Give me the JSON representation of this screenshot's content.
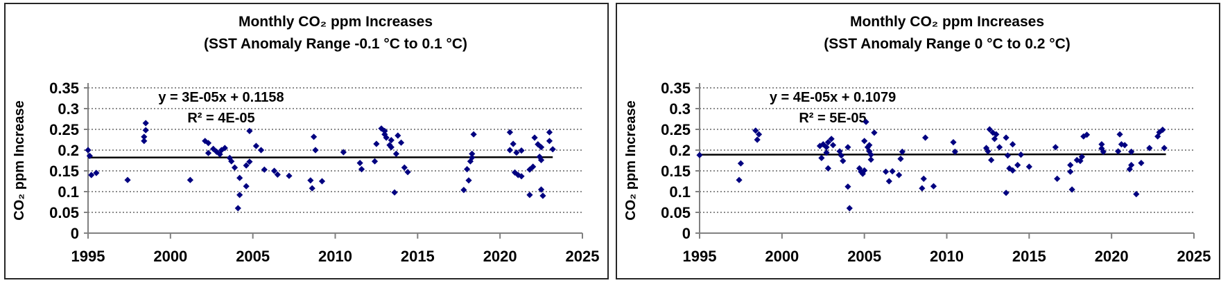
{
  "colors": {
    "marker": "#000080",
    "trend": "#000000",
    "grid": "#444444",
    "axis": "#808080",
    "text": "#000000",
    "border": "#262626",
    "background": "#ffffff"
  },
  "chart_data": [
    {
      "type": "scatter",
      "title": "Monthly CO₂ ppm Increases",
      "subtitle": "(SST Anomaly Range -0.1 °C to 0.1 °C)",
      "equation": "y = 3E-05x + 0.1158",
      "r2": "R² = 4E-05",
      "xlabel": "",
      "ylabel": "CO₂ ppm Increase",
      "xlim": [
        1995,
        2025
      ],
      "ylim": [
        0,
        0.35
      ],
      "x_ticks": [
        1995,
        2000,
        2005,
        2010,
        2015,
        2020,
        2025
      ],
      "y_ticks": [
        0,
        0.05,
        0.1,
        0.15,
        0.2,
        0.25,
        0.3,
        0.35
      ],
      "y_tick_labels": [
        "0",
        "0.05",
        "0.1",
        "0.15",
        "0.2",
        "0.25",
        "0.3",
        "0.35"
      ],
      "grid": "dotted-horizontal",
      "legend": "none",
      "trendline": {
        "x1": 1995,
        "y1": 0.182,
        "x2": 2023.2,
        "y2": 0.183
      },
      "points": [
        [
          1995.0,
          0.2
        ],
        [
          1995.1,
          0.186
        ],
        [
          1995.2,
          0.14
        ],
        [
          1995.5,
          0.145
        ],
        [
          1997.4,
          0.128
        ],
        [
          1998.4,
          0.232
        ],
        [
          1998.4,
          0.222
        ],
        [
          1998.5,
          0.265
        ],
        [
          1998.5,
          0.248
        ],
        [
          2001.2,
          0.128
        ],
        [
          2002.1,
          0.222
        ],
        [
          2002.3,
          0.217
        ],
        [
          2002.3,
          0.193
        ],
        [
          2002.6,
          0.203
        ],
        [
          2002.8,
          0.196
        ],
        [
          2003.0,
          0.19
        ],
        [
          2003.1,
          0.2
        ],
        [
          2003.3,
          0.205
        ],
        [
          2003.6,
          0.181
        ],
        [
          2003.7,
          0.173
        ],
        [
          2003.9,
          0.158
        ],
        [
          2004.1,
          0.06
        ],
        [
          2004.2,
          0.133
        ],
        [
          2004.2,
          0.092
        ],
        [
          2004.6,
          0.113
        ],
        [
          2004.6,
          0.163
        ],
        [
          2004.8,
          0.172
        ],
        [
          2004.8,
          0.246
        ],
        [
          2005.2,
          0.21
        ],
        [
          2005.5,
          0.2
        ],
        [
          2005.7,
          0.153
        ],
        [
          2006.3,
          0.15
        ],
        [
          2006.5,
          0.141
        ],
        [
          2007.2,
          0.138
        ],
        [
          2008.5,
          0.127
        ],
        [
          2008.6,
          0.108
        ],
        [
          2008.7,
          0.232
        ],
        [
          2008.8,
          0.2
        ],
        [
          2009.2,
          0.125
        ],
        [
          2010.5,
          0.195
        ],
        [
          2011.5,
          0.169
        ],
        [
          2011.6,
          0.154
        ],
        [
          2012.4,
          0.173
        ],
        [
          2012.5,
          0.215
        ],
        [
          2012.8,
          0.252
        ],
        [
          2013.0,
          0.246
        ],
        [
          2013.0,
          0.238
        ],
        [
          2013.1,
          0.23
        ],
        [
          2013.3,
          0.212
        ],
        [
          2013.4,
          0.224
        ],
        [
          2013.4,
          0.207
        ],
        [
          2013.6,
          0.098
        ],
        [
          2013.7,
          0.191
        ],
        [
          2013.8,
          0.235
        ],
        [
          2014.0,
          0.218
        ],
        [
          2014.2,
          0.158
        ],
        [
          2014.4,
          0.147
        ],
        [
          2017.8,
          0.104
        ],
        [
          2018.0,
          0.154
        ],
        [
          2018.1,
          0.127
        ],
        [
          2018.2,
          0.173
        ],
        [
          2018.3,
          0.191
        ],
        [
          2018.3,
          0.182
        ],
        [
          2018.4,
          0.238
        ],
        [
          2020.6,
          0.243
        ],
        [
          2020.6,
          0.2
        ],
        [
          2020.8,
          0.215
        ],
        [
          2020.9,
          0.146
        ],
        [
          2021.0,
          0.194
        ],
        [
          2021.1,
          0.14
        ],
        [
          2021.3,
          0.137
        ],
        [
          2021.3,
          0.199
        ],
        [
          2021.8,
          0.092
        ],
        [
          2021.8,
          0.153
        ],
        [
          2022.0,
          0.16
        ],
        [
          2022.1,
          0.23
        ],
        [
          2022.3,
          0.214
        ],
        [
          2022.4,
          0.184
        ],
        [
          2022.5,
          0.207
        ],
        [
          2022.5,
          0.176
        ],
        [
          2022.5,
          0.105
        ],
        [
          2022.6,
          0.09
        ],
        [
          2023.0,
          0.243
        ],
        [
          2023.0,
          0.222
        ],
        [
          2023.2,
          0.202
        ]
      ]
    },
    {
      "type": "scatter",
      "title": "Monthly CO₂ ppm Increases",
      "subtitle": "(SST Anomaly Range 0 °C to 0.2 °C)",
      "equation": "y = 4E-05x + 0.1079",
      "r2": "R² = 5E-05",
      "xlabel": "",
      "ylabel": "CO₂ ppm Increase",
      "xlim": [
        1995,
        2025
      ],
      "ylim": [
        0,
        0.35
      ],
      "x_ticks": [
        1995,
        2000,
        2005,
        2010,
        2015,
        2020,
        2025
      ],
      "y_ticks": [
        0,
        0.05,
        0.1,
        0.15,
        0.2,
        0.25,
        0.3,
        0.35
      ],
      "y_tick_labels": [
        "0",
        "0.05",
        "0.1",
        "0.15",
        "0.2",
        "0.25",
        "0.3",
        "0.35"
      ],
      "grid": "dotted-horizontal",
      "legend": "none",
      "trendline": {
        "x1": 1995,
        "y1": 0.189,
        "x2": 2023.3,
        "y2": 0.19
      },
      "points": [
        [
          1995.0,
          0.188
        ],
        [
          1997.4,
          0.128
        ],
        [
          1997.5,
          0.168
        ],
        [
          1998.4,
          0.247
        ],
        [
          1998.5,
          0.225
        ],
        [
          1998.6,
          0.238
        ],
        [
          2002.3,
          0.21
        ],
        [
          2002.4,
          0.181
        ],
        [
          2002.5,
          0.214
        ],
        [
          2002.7,
          0.207
        ],
        [
          2002.7,
          0.194
        ],
        [
          2002.8,
          0.219
        ],
        [
          2002.8,
          0.156
        ],
        [
          2003.0,
          0.227
        ],
        [
          2003.1,
          0.212
        ],
        [
          2003.5,
          0.197
        ],
        [
          2003.6,
          0.187
        ],
        [
          2003.7,
          0.174
        ],
        [
          2004.0,
          0.207
        ],
        [
          2004.0,
          0.112
        ],
        [
          2004.1,
          0.06
        ],
        [
          2004.7,
          0.156
        ],
        [
          2004.8,
          0.148
        ],
        [
          2004.9,
          0.143
        ],
        [
          2005.0,
          0.222
        ],
        [
          2005.0,
          0.151
        ],
        [
          2005.1,
          0.268
        ],
        [
          2005.2,
          0.207
        ],
        [
          2005.3,
          0.212
        ],
        [
          2005.3,
          0.197
        ],
        [
          2005.4,
          0.189
        ],
        [
          2005.4,
          0.177
        ],
        [
          2005.6,
          0.242
        ],
        [
          2006.3,
          0.148
        ],
        [
          2006.5,
          0.125
        ],
        [
          2006.7,
          0.149
        ],
        [
          2007.1,
          0.14
        ],
        [
          2007.2,
          0.179
        ],
        [
          2007.3,
          0.196
        ],
        [
          2008.5,
          0.108
        ],
        [
          2008.6,
          0.131
        ],
        [
          2008.7,
          0.23
        ],
        [
          2009.2,
          0.113
        ],
        [
          2010.4,
          0.219
        ],
        [
          2010.5,
          0.196
        ],
        [
          2012.4,
          0.205
        ],
        [
          2012.5,
          0.197
        ],
        [
          2012.6,
          0.25
        ],
        [
          2012.7,
          0.176
        ],
        [
          2012.8,
          0.242
        ],
        [
          2012.9,
          0.227
        ],
        [
          2013.0,
          0.238
        ],
        [
          2013.2,
          0.207
        ],
        [
          2013.6,
          0.23
        ],
        [
          2013.6,
          0.097
        ],
        [
          2013.7,
          0.187
        ],
        [
          2013.8,
          0.156
        ],
        [
          2014.0,
          0.214
        ],
        [
          2014.0,
          0.151
        ],
        [
          2014.3,
          0.164
        ],
        [
          2014.5,
          0.189
        ],
        [
          2015.0,
          0.16
        ],
        [
          2016.6,
          0.207
        ],
        [
          2016.7,
          0.131
        ],
        [
          2017.5,
          0.148
        ],
        [
          2017.5,
          0.164
        ],
        [
          2017.6,
          0.105
        ],
        [
          2017.9,
          0.176
        ],
        [
          2018.1,
          0.174
        ],
        [
          2018.2,
          0.184
        ],
        [
          2018.3,
          0.233
        ],
        [
          2018.5,
          0.237
        ],
        [
          2019.4,
          0.214
        ],
        [
          2019.4,
          0.204
        ],
        [
          2019.5,
          0.196
        ],
        [
          2020.4,
          0.197
        ],
        [
          2020.5,
          0.238
        ],
        [
          2020.6,
          0.214
        ],
        [
          2020.8,
          0.212
        ],
        [
          2021.1,
          0.154
        ],
        [
          2021.2,
          0.196
        ],
        [
          2021.2,
          0.164
        ],
        [
          2021.5,
          0.094
        ],
        [
          2021.8,
          0.169
        ],
        [
          2022.3,
          0.205
        ],
        [
          2022.8,
          0.233
        ],
        [
          2022.9,
          0.243
        ],
        [
          2023.1,
          0.249
        ],
        [
          2023.2,
          0.205
        ]
      ]
    }
  ]
}
